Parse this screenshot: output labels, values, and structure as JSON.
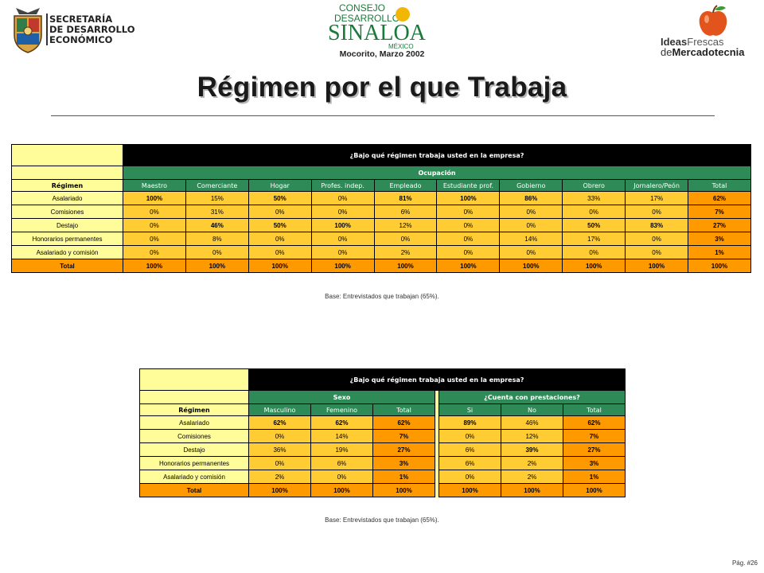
{
  "header": {
    "secretaria_lines": [
      "SECRETARÍA",
      "DE DESARROLLO",
      "ECONÓMICO"
    ],
    "consejo_line1": "CONSEJO",
    "consejo_line2": "DESARROLLO",
    "sinaloa": "SINALOA",
    "mexico": "MÉXICO",
    "subtitle": "Mocorito, Marzo 2002",
    "ideas": "Ideas",
    "frescas": "Frescas",
    "de": "de",
    "mercadotecnia": "Mercadotecnia"
  },
  "title": "Régimen por el que Trabaja",
  "table1": {
    "question": "¿Bajo qué régimen trabaja usted en la empresa?",
    "group": "Ocupación",
    "row_header": "Régimen",
    "columns": [
      "Maestro",
      "Comerciante",
      "Hogar",
      "Profes. indep.",
      "Empleado",
      "Estudiante prof.",
      "Gobierno",
      "Obrero",
      "Jornalero/Peón",
      "Total"
    ],
    "rows": [
      {
        "label": "Asalariado",
        "values": [
          "100%",
          "15%",
          "50%",
          "0%",
          "81%",
          "100%",
          "86%",
          "33%",
          "17%",
          "62%"
        ],
        "bold": [
          true,
          false,
          true,
          false,
          true,
          true,
          true,
          false,
          false,
          true
        ]
      },
      {
        "label": "Comisiones",
        "values": [
          "0%",
          "31%",
          "0%",
          "0%",
          "6%",
          "0%",
          "0%",
          "0%",
          "0%",
          "7%"
        ],
        "bold": [
          false,
          false,
          false,
          false,
          false,
          false,
          false,
          false,
          false,
          true
        ]
      },
      {
        "label": "Destajo",
        "values": [
          "0%",
          "46%",
          "50%",
          "100%",
          "12%",
          "0%",
          "0%",
          "50%",
          "83%",
          "27%"
        ],
        "bold": [
          false,
          true,
          true,
          true,
          false,
          false,
          false,
          true,
          true,
          true
        ]
      },
      {
        "label": "Honorarios permanentes",
        "values": [
          "0%",
          "8%",
          "0%",
          "0%",
          "0%",
          "0%",
          "14%",
          "17%",
          "0%",
          "3%"
        ],
        "bold": [
          false,
          false,
          false,
          false,
          false,
          false,
          false,
          false,
          false,
          true
        ]
      },
      {
        "label": "Asalariado y comisión",
        "values": [
          "0%",
          "0%",
          "0%",
          "0%",
          "2%",
          "0%",
          "0%",
          "0%",
          "0%",
          "1%"
        ],
        "bold": [
          false,
          false,
          false,
          false,
          false,
          false,
          false,
          false,
          false,
          true
        ]
      }
    ],
    "total": {
      "label": "Total",
      "values": [
        "100%",
        "100%",
        "100%",
        "100%",
        "100%",
        "100%",
        "100%",
        "100%",
        "100%",
        "100%"
      ]
    },
    "note": "Base:   Entrevistados que trabajan (65%)."
  },
  "table2": {
    "question": "¿Bajo qué régimen trabaja usted en la empresa?",
    "group1": "Sexo",
    "group2": "¿Cuenta con prestaciones?",
    "row_header": "Régimen",
    "columns1": [
      "Masculino",
      "Femenino",
      "Total"
    ],
    "columns2": [
      "Si",
      "No",
      "Total"
    ],
    "rows": [
      {
        "label": "Asalariado",
        "values": [
          "62%",
          "62%",
          "62%",
          "89%",
          "46%",
          "62%"
        ],
        "bold": [
          true,
          true,
          true,
          true,
          false,
          true
        ]
      },
      {
        "label": "Comisiones",
        "values": [
          "0%",
          "14%",
          "7%",
          "0%",
          "12%",
          "7%"
        ],
        "bold": [
          false,
          false,
          true,
          false,
          false,
          true
        ]
      },
      {
        "label": "Destajo",
        "values": [
          "36%",
          "19%",
          "27%",
          "6%",
          "39%",
          "27%"
        ],
        "bold": [
          false,
          false,
          true,
          false,
          true,
          true
        ]
      },
      {
        "label": "Honorarios permanentes",
        "values": [
          "0%",
          "6%",
          "3%",
          "6%",
          "2%",
          "3%"
        ],
        "bold": [
          false,
          false,
          true,
          false,
          false,
          true
        ]
      },
      {
        "label": "Asalariado y comisión",
        "values": [
          "2%",
          "0%",
          "1%",
          "0%",
          "2%",
          "1%"
        ],
        "bold": [
          false,
          false,
          true,
          false,
          false,
          true
        ]
      }
    ],
    "total": {
      "label": "Total",
      "values": [
        "100%",
        "100%",
        "100%",
        "100%",
        "100%",
        "100%"
      ]
    },
    "note": "Base:   Entrevistados que trabajan (65%)."
  },
  "page_number": "Pág. #26",
  "colors": {
    "green_header": "#2e8b57",
    "yellow_label": "#fffd9a",
    "value_cell": "#ffcc33",
    "total_cell": "#ff9900"
  }
}
